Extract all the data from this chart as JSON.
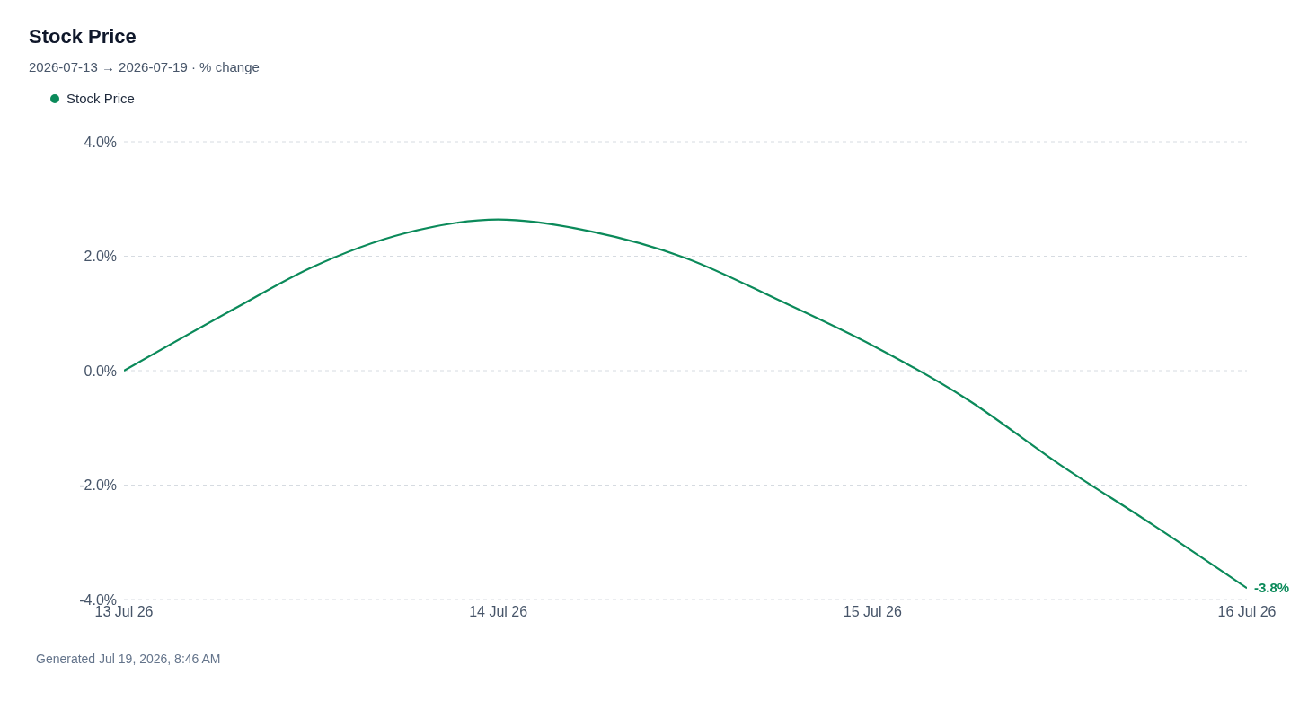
{
  "chart_data": {
    "type": "line",
    "title": "Stock Price",
    "subtitle": "2026-07-13 → 2026-07-19 · % change",
    "x": [
      "2026-07-13T00:00",
      "2026-07-13T07:00",
      "2026-07-13T12:00",
      "2026-07-13T18:00",
      "2026-07-14T00:00",
      "2026-07-14T06:00",
      "2026-07-14T12:00",
      "2026-07-14T18:00",
      "2026-07-15T00:00",
      "2026-07-15T06:00",
      "2026-07-15T12:00",
      "2026-07-15T18:00",
      "2026-07-16T00:00"
    ],
    "series": [
      {
        "name": "Stock Price",
        "color": "#0b8a5a",
        "values": [
          0,
          1.07,
          1.8,
          2.4,
          2.64,
          2.43,
          1.97,
          1.23,
          0.44,
          -0.49,
          -1.64,
          -2.7,
          -3.8
        ],
        "value_labels": [
          null,
          null,
          null,
          null,
          null,
          null,
          null,
          null,
          null,
          null,
          null,
          null,
          "-3.8%"
        ]
      }
    ],
    "xlim": [
      "2026-07-13",
      "2026-07-16"
    ],
    "xticks": [
      {
        "value": "2026-07-13",
        "label": "13 Jul 26"
      },
      {
        "value": "2026-07-14",
        "label": "14 Jul 26"
      },
      {
        "value": "2026-07-15",
        "label": "15 Jul 26"
      },
      {
        "value": "2026-07-16",
        "label": "16 Jul 26"
      }
    ],
    "ylim": [
      -4,
      4
    ],
    "yticks": [
      {
        "value": -4,
        "label": "-4.0%"
      },
      {
        "value": -2,
        "label": "-2.0%"
      },
      {
        "value": 0,
        "label": "0.0%"
      },
      {
        "value": 2,
        "label": "2.0%"
      },
      {
        "value": 4,
        "label": "4.0%"
      }
    ],
    "grid": "y",
    "legend": "top left",
    "marker": "none",
    "line_style": "solid",
    "annotations": [
      "Generated Jul 19, 2026, 8:46 AM"
    ]
  }
}
